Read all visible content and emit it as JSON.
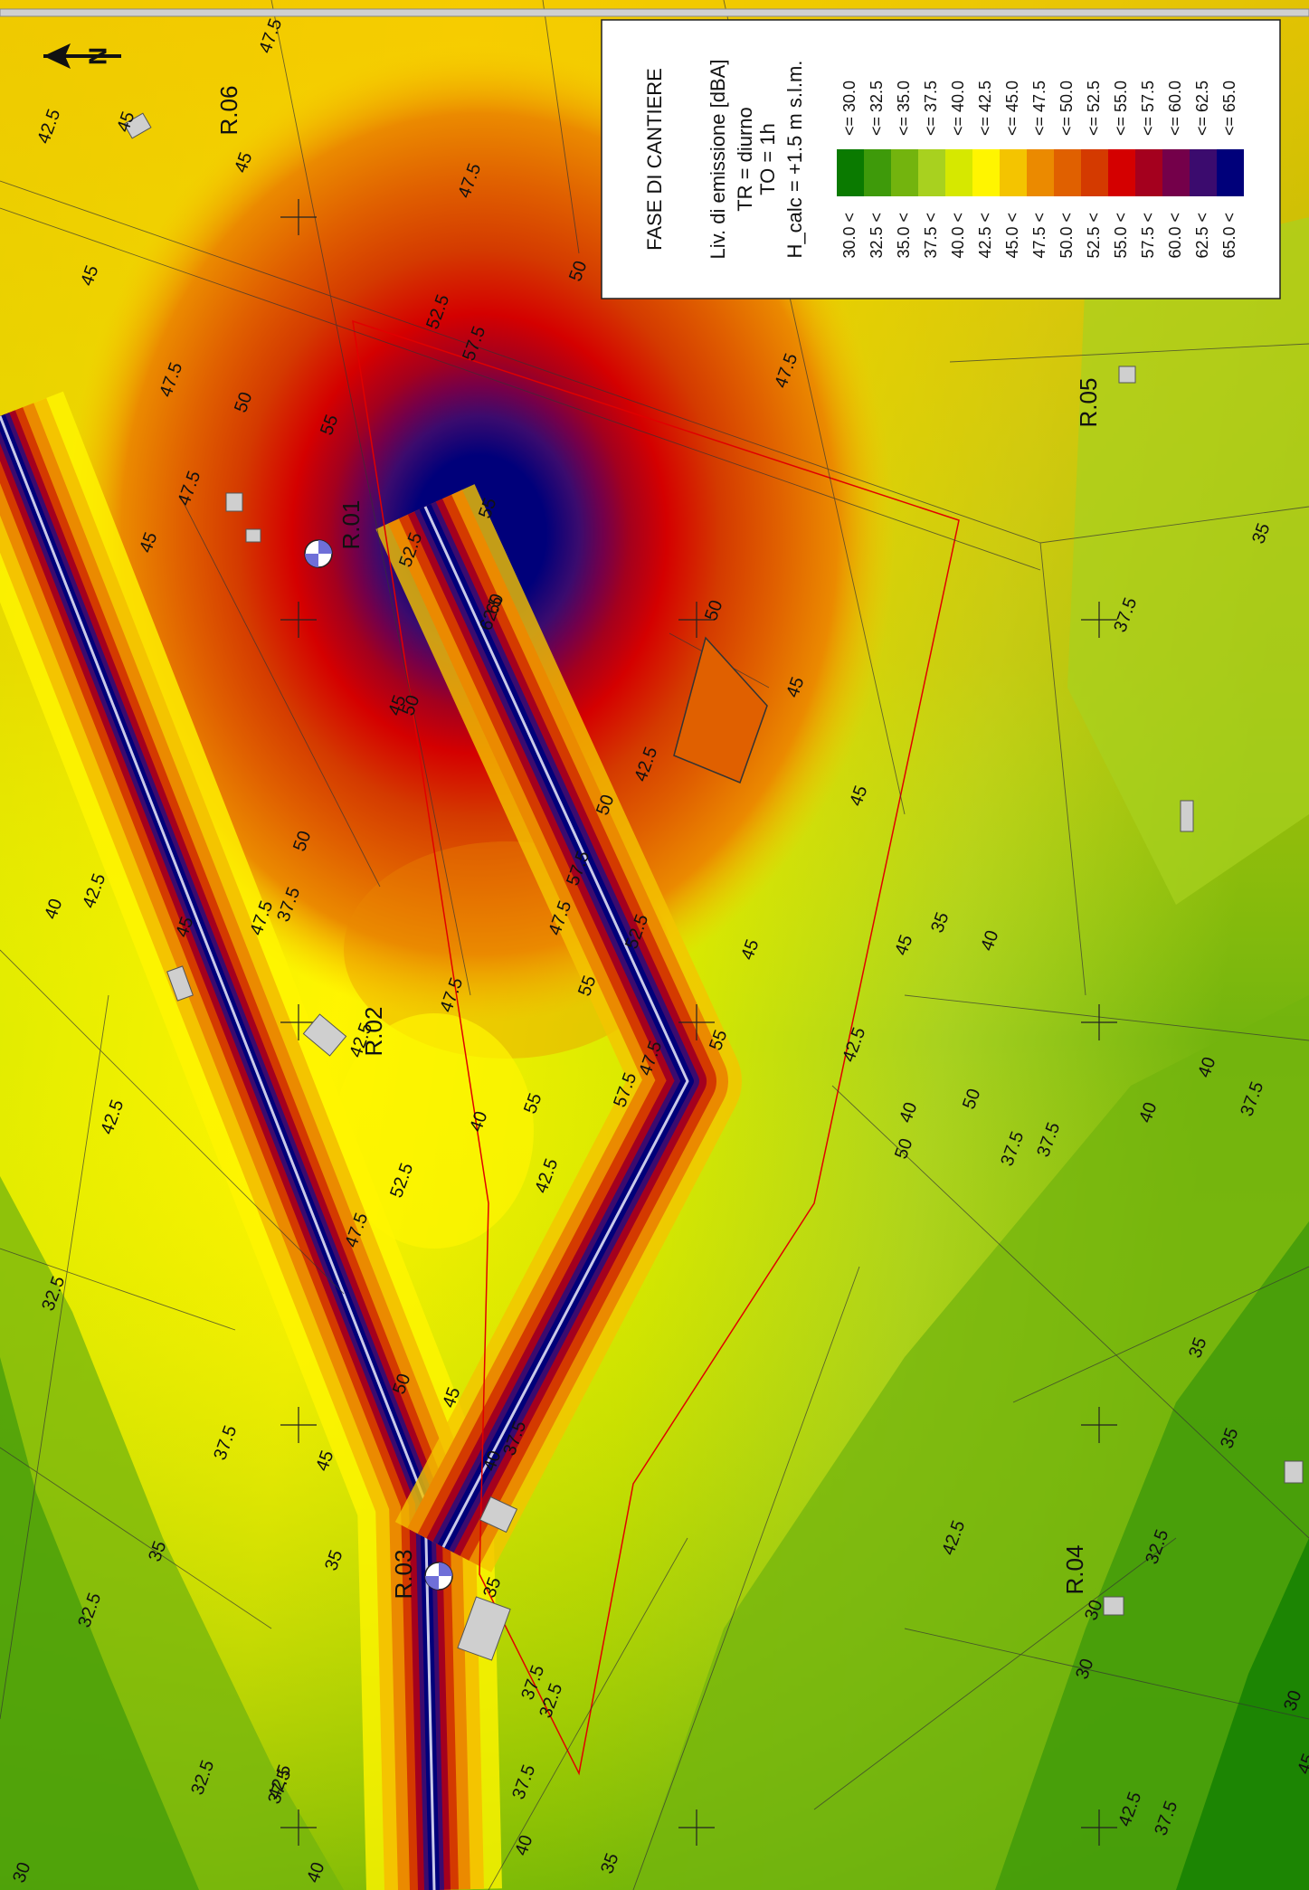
{
  "legend": {
    "title": "FASE DI CANTIERE",
    "lines": [
      "Liv. di emissione [dBA]",
      "TR = diurno",
      "TO = 1h",
      "H_calc = +1.5 m s.l.m."
    ],
    "classes": [
      {
        "left": "30.0 <",
        "right": "<= 30.0",
        "color": "#0a7a00"
      },
      {
        "left": "32.5 <",
        "right": "<= 32.5",
        "color": "#3e9a0a"
      },
      {
        "left": "35.0 <",
        "right": "<= 35.0",
        "color": "#73b40e"
      },
      {
        "left": "37.5 <",
        "right": "<= 37.5",
        "color": "#a8d11f"
      },
      {
        "left": "40.0 <",
        "right": "<= 40.0",
        "color": "#d6e800"
      },
      {
        "left": "42.5 <",
        "right": "<= 42.5",
        "color": "#fff500"
      },
      {
        "left": "45.0 <",
        "right": "<= 45.0",
        "color": "#f4c400"
      },
      {
        "left": "47.5 <",
        "right": "<= 47.5",
        "color": "#eb8a00"
      },
      {
        "left": "50.0 <",
        "right": "<= 50.0",
        "color": "#e06000"
      },
      {
        "left": "52.5 <",
        "right": "<= 52.5",
        "color": "#d43a00"
      },
      {
        "left": "55.0 <",
        "right": "<= 55.0",
        "color": "#d40000"
      },
      {
        "left": "57.5 <",
        "right": "<= 57.5",
        "color": "#a4001e"
      },
      {
        "left": "60.0 <",
        "right": "<= 60.0",
        "color": "#74004a"
      },
      {
        "left": "62.5 <",
        "right": "<= 62.5",
        "color": "#3b0b6e"
      },
      {
        "left": "65.0 <",
        "right": "<= 65.0",
        "color": "#00007a"
      }
    ]
  },
  "north_label": "N",
  "receivers": [
    {
      "id": "R.01",
      "color": "#6f6fd8"
    },
    {
      "id": "R.02"
    },
    {
      "id": "R.03",
      "color": "#6f6fd8"
    },
    {
      "id": "R.04"
    },
    {
      "id": "R.05"
    },
    {
      "id": "R.06"
    }
  ],
  "contour_labels": [
    "47.5",
    "42.5",
    "45",
    "45",
    "47.5",
    "50",
    "45",
    "47.5",
    "52.5",
    "47.5",
    "50",
    "55",
    "57.5",
    "60",
    "62.5",
    "52.5",
    "55",
    "50",
    "47.5",
    "45",
    "40",
    "42.5",
    "45",
    "47.5",
    "50",
    "52.5",
    "55",
    "57.5",
    "55",
    "52.5",
    "50",
    "47.5",
    "45",
    "40",
    "37.5",
    "35",
    "37.5",
    "40",
    "42.5",
    "45",
    "47.5",
    "42.5",
    "42.5",
    "45",
    "40",
    "37.5",
    "35",
    "32.5",
    "37.5",
    "35",
    "32.5",
    "30",
    "37.5",
    "35",
    "32.5",
    "30",
    "42.5",
    "47.5",
    "50",
    "37.5",
    "40",
    "45",
    "50",
    "35",
    "37.5",
    "40",
    "42.5",
    "45",
    "50",
    "47.5",
    "57.5",
    "55",
    "45",
    "42.5",
    "40",
    "37.5",
    "35",
    "37.5",
    "35",
    "32.5",
    "30",
    "42.5",
    "45",
    "42.5",
    "37.5",
    "40",
    "35",
    "32.5",
    "30",
    "37.5",
    "40",
    "45",
    "50"
  ]
}
